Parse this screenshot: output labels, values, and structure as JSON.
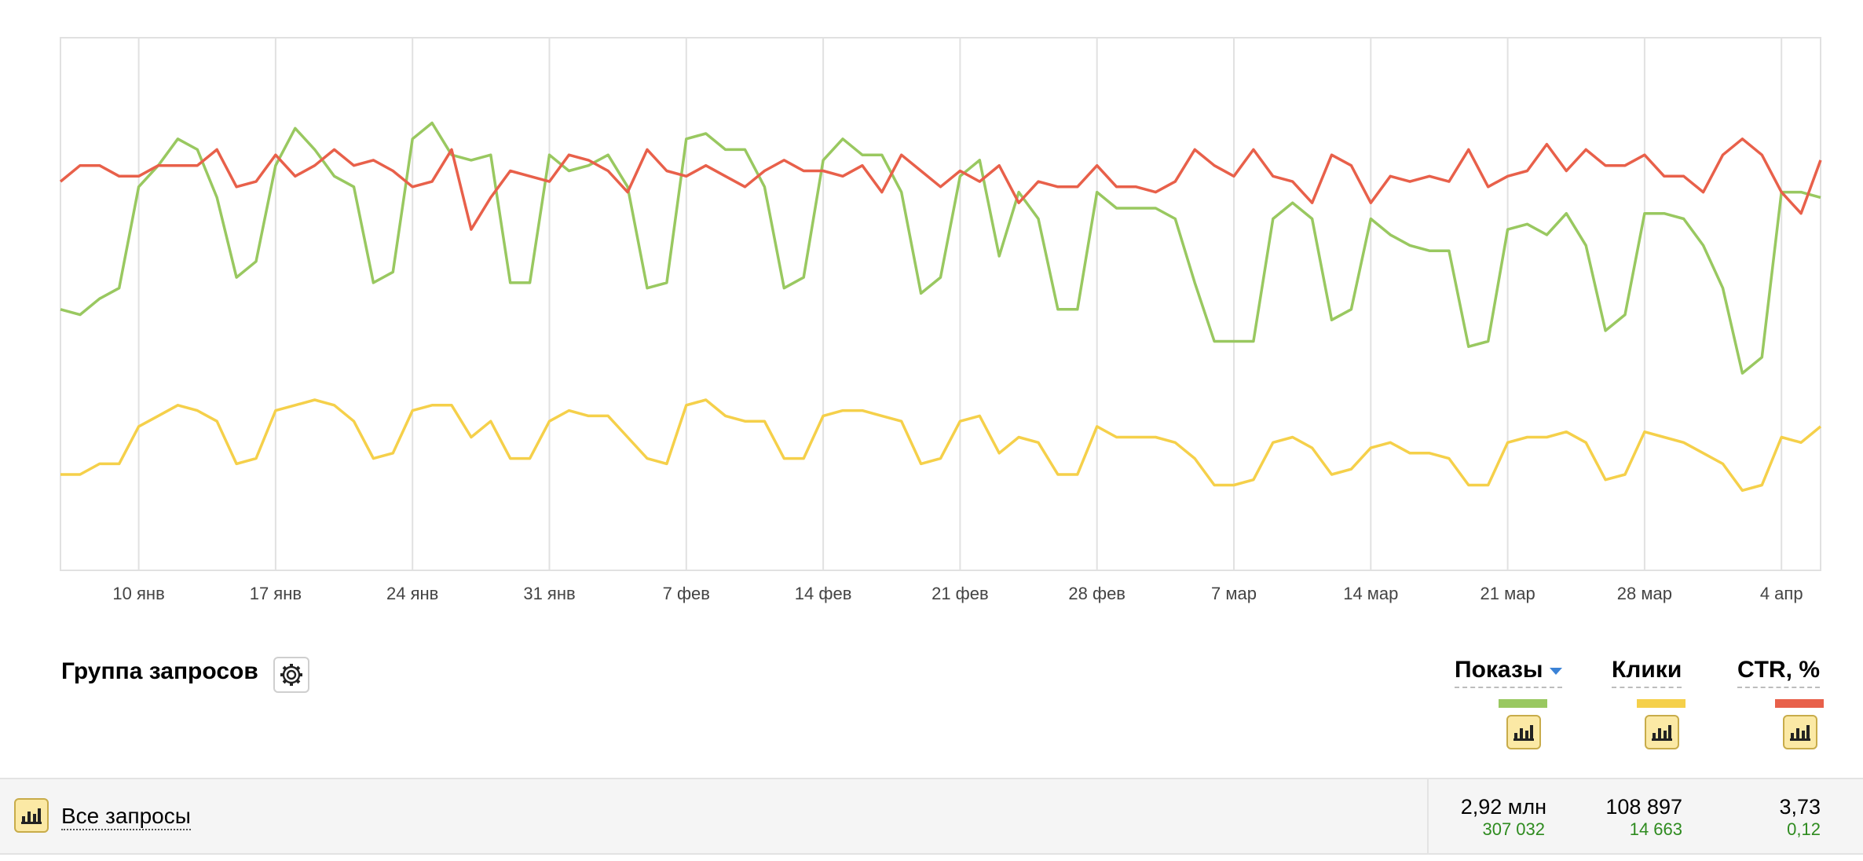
{
  "chart_data": {
    "type": "line",
    "x_ticks": [
      "10 янв",
      "17 янв",
      "24 янв",
      "31 янв",
      "7 фев",
      "14 фев",
      "21 фев",
      "28 фев",
      "7 мар",
      "14 мар",
      "21 мар",
      "28 мар",
      "4 апр"
    ],
    "x_tick_day_index": [
      4,
      11,
      18,
      25,
      32,
      39,
      46,
      53,
      60,
      67,
      74,
      81,
      88
    ],
    "x_range_days": [
      0,
      90
    ],
    "y_range": [
      0,
      1
    ],
    "grid": "vertical",
    "legend": "bottom-right",
    "series": [
      {
        "color": "#99c860",
        "values": [
          0.49,
          0.48,
          0.51,
          0.53,
          0.72,
          0.76,
          0.81,
          0.79,
          0.7,
          0.55,
          0.58,
          0.76,
          0.83,
          0.79,
          0.74,
          0.72,
          0.54,
          0.56,
          0.81,
          0.84,
          0.78,
          0.77,
          0.78,
          0.54,
          0.54,
          0.78,
          0.75,
          0.76,
          0.78,
          0.72,
          0.53,
          0.54,
          0.81,
          0.82,
          0.79,
          0.79,
          0.72,
          0.53,
          0.55,
          0.77,
          0.81,
          0.78,
          0.78,
          0.71,
          0.52,
          0.55,
          0.74,
          0.77,
          0.59,
          0.71,
          0.66,
          0.49,
          0.49,
          0.71,
          0.68,
          0.68,
          0.68,
          0.66,
          0.54,
          0.43,
          0.43,
          0.43,
          0.66,
          0.69,
          0.66,
          0.47,
          0.49,
          0.66,
          0.63,
          0.61,
          0.6,
          0.6,
          0.42,
          0.43,
          0.64,
          0.65,
          0.63,
          0.67,
          0.61,
          0.45,
          0.48,
          0.67,
          0.67,
          0.66,
          0.61,
          0.53,
          0.37,
          0.4,
          0.71,
          0.71,
          0.7
        ]
      },
      {
        "color": "#f5d04a",
        "values": [
          0.18,
          0.18,
          0.2,
          0.2,
          0.27,
          0.29,
          0.31,
          0.3,
          0.28,
          0.2,
          0.21,
          0.3,
          0.31,
          0.32,
          0.31,
          0.28,
          0.21,
          0.22,
          0.3,
          0.31,
          0.31,
          0.25,
          0.28,
          0.21,
          0.21,
          0.28,
          0.3,
          0.29,
          0.29,
          0.25,
          0.21,
          0.2,
          0.31,
          0.32,
          0.29,
          0.28,
          0.28,
          0.21,
          0.21,
          0.29,
          0.3,
          0.3,
          0.29,
          0.28,
          0.2,
          0.21,
          0.28,
          0.29,
          0.22,
          0.25,
          0.24,
          0.18,
          0.18,
          0.27,
          0.25,
          0.25,
          0.25,
          0.24,
          0.21,
          0.16,
          0.16,
          0.17,
          0.24,
          0.25,
          0.23,
          0.18,
          0.19,
          0.23,
          0.24,
          0.22,
          0.22,
          0.21,
          0.16,
          0.16,
          0.24,
          0.25,
          0.25,
          0.26,
          0.24,
          0.17,
          0.18,
          0.26,
          0.25,
          0.24,
          0.22,
          0.2,
          0.15,
          0.16,
          0.25,
          0.24,
          0.27
        ]
      },
      {
        "color": "#e8604a",
        "values": [
          0.73,
          0.76,
          0.76,
          0.74,
          0.74,
          0.76,
          0.76,
          0.76,
          0.79,
          0.72,
          0.73,
          0.78,
          0.74,
          0.76,
          0.79,
          0.76,
          0.77,
          0.75,
          0.72,
          0.73,
          0.79,
          0.64,
          0.7,
          0.75,
          0.74,
          0.73,
          0.78,
          0.77,
          0.75,
          0.71,
          0.79,
          0.75,
          0.74,
          0.76,
          0.74,
          0.72,
          0.75,
          0.77,
          0.75,
          0.75,
          0.74,
          0.76,
          0.71,
          0.78,
          0.75,
          0.72,
          0.75,
          0.73,
          0.76,
          0.69,
          0.73,
          0.72,
          0.72,
          0.76,
          0.72,
          0.72,
          0.71,
          0.73,
          0.79,
          0.76,
          0.74,
          0.79,
          0.74,
          0.73,
          0.69,
          0.78,
          0.76,
          0.69,
          0.74,
          0.73,
          0.74,
          0.73,
          0.79,
          0.72,
          0.74,
          0.75,
          0.8,
          0.75,
          0.79,
          0.76,
          0.76,
          0.78,
          0.74,
          0.74,
          0.71,
          0.78,
          0.81,
          0.78,
          0.71,
          0.67,
          0.77
        ]
      }
    ]
  },
  "header": {
    "title": "Группа запросов",
    "columns": [
      {
        "label": "Показы",
        "color": "#99c860",
        "sorted": true
      },
      {
        "label": "Клики",
        "color": "#f5d04a"
      },
      {
        "label": "CTR, %",
        "color": "#e8604a"
      }
    ]
  },
  "row": {
    "label": "Все запросы",
    "shows": "2,92 млн",
    "shows_delta": "307 032",
    "clicks": "108 897",
    "clicks_delta": "14 663",
    "ctr": "3,73",
    "ctr_delta": "0,12"
  },
  "icons": {
    "settings": "gear-icon",
    "chart_toggle": "bar-chart-icon"
  }
}
